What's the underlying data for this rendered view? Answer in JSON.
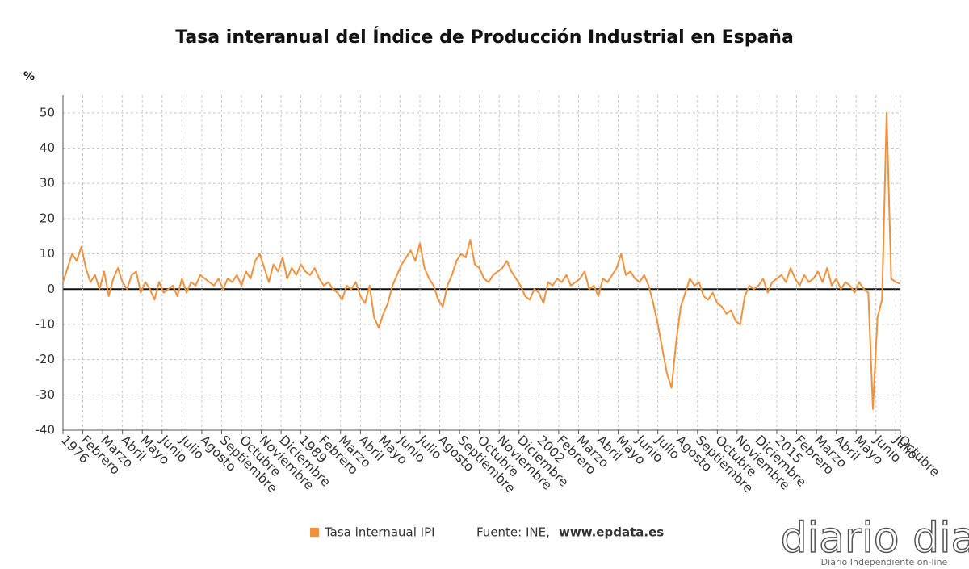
{
  "chart_data": {
    "type": "line",
    "title": "Tasa interanual del Índice de Producción Industrial en España",
    "y_label": "%",
    "x": [
      1976,
      1976.25,
      1976.5,
      1976.75,
      1977,
      1977.25,
      1977.5,
      1977.75,
      1978,
      1978.25,
      1978.5,
      1978.75,
      1979,
      1979.25,
      1979.5,
      1979.75,
      1980,
      1980.25,
      1980.5,
      1980.75,
      1981,
      1981.25,
      1981.5,
      1981.75,
      1982,
      1982.25,
      1982.5,
      1982.75,
      1983,
      1983.25,
      1983.5,
      1983.75,
      1984,
      1984.25,
      1984.5,
      1984.75,
      1985,
      1985.25,
      1985.5,
      1985.75,
      1986,
      1986.25,
      1986.5,
      1986.75,
      1987,
      1987.25,
      1987.5,
      1987.75,
      1988,
      1988.25,
      1988.5,
      1988.75,
      1989,
      1989.25,
      1989.5,
      1989.75,
      1990,
      1990.25,
      1990.5,
      1990.75,
      1991,
      1991.25,
      1991.5,
      1991.75,
      1992,
      1992.25,
      1992.5,
      1992.75,
      1993,
      1993.25,
      1993.5,
      1993.75,
      1994,
      1994.25,
      1994.5,
      1994.75,
      1995,
      1995.25,
      1995.5,
      1995.75,
      1996,
      1996.25,
      1996.5,
      1996.75,
      1997,
      1997.25,
      1997.5,
      1997.75,
      1998,
      1998.25,
      1998.5,
      1998.75,
      1999,
      1999.25,
      1999.5,
      1999.75,
      2000,
      2000.25,
      2000.5,
      2000.75,
      2001,
      2001.25,
      2001.5,
      2001.75,
      2002,
      2002.25,
      2002.5,
      2002.75,
      2003,
      2003.25,
      2003.5,
      2003.75,
      2004,
      2004.25,
      2004.5,
      2004.75,
      2005,
      2005.25,
      2005.5,
      2005.75,
      2006,
      2006.25,
      2006.5,
      2006.75,
      2007,
      2007.25,
      2007.5,
      2007.75,
      2008,
      2008.25,
      2008.5,
      2008.75,
      2009,
      2009.25,
      2009.5,
      2009.75,
      2010,
      2010.25,
      2010.5,
      2010.75,
      2011,
      2011.25,
      2011.5,
      2011.75,
      2012,
      2012.25,
      2012.5,
      2012.75,
      2013,
      2013.25,
      2013.5,
      2013.75,
      2014,
      2014.25,
      2014.5,
      2014.75,
      2015,
      2015.25,
      2015.5,
      2015.75,
      2016,
      2016.25,
      2016.5,
      2016.75,
      2017,
      2017.25,
      2017.5,
      2017.75,
      2018,
      2018.25,
      2018.5,
      2018.75,
      2019,
      2019.25,
      2019.5,
      2019.75,
      2020,
      2020.25,
      2020.5,
      2020.75,
      2021,
      2021.25,
      2021.5,
      2021.75
    ],
    "series": [
      {
        "name": "Tasa internaual IPI",
        "color": "#f0913e",
        "values": [
          2,
          6,
          10,
          8,
          12,
          6,
          2,
          4,
          0,
          5,
          -2,
          3,
          6,
          2,
          0,
          4,
          5,
          -1,
          2,
          0,
          -3,
          2,
          -1,
          0,
          1,
          -2,
          3,
          -1,
          2,
          1,
          4,
          3,
          2,
          1,
          3,
          0,
          3,
          2,
          4,
          1,
          5,
          3,
          8,
          10,
          6,
          2,
          7,
          5,
          9,
          3,
          6,
          4,
          7,
          5,
          4,
          6,
          3,
          1,
          2,
          0,
          -1,
          -3,
          1,
          0,
          2,
          -2,
          -4,
          1,
          -8,
          -11,
          -7,
          -4,
          1,
          4,
          7,
          9,
          11,
          8,
          13,
          6,
          3,
          1,
          -3,
          -5,
          1,
          4,
          8,
          10,
          9,
          14,
          7,
          6,
          3,
          2,
          4,
          5,
          6,
          8,
          5,
          3,
          1,
          -2,
          -3,
          0,
          -1,
          -4,
          2,
          1,
          3,
          2,
          4,
          1,
          2,
          3,
          5,
          0,
          1,
          -2,
          3,
          2,
          4,
          6,
          10,
          4,
          5,
          3,
          2,
          4,
          1,
          -4,
          -10,
          -17,
          -24,
          -28,
          -15,
          -5,
          -1,
          3,
          1,
          2,
          -2,
          -3,
          -1,
          -4,
          -5,
          -7,
          -6,
          -9,
          -10,
          -2,
          1,
          0,
          1,
          3,
          -1,
          2,
          3,
          4,
          2,
          6,
          3,
          1,
          4,
          2,
          3,
          5,
          2,
          6,
          1,
          3,
          0,
          2,
          1,
          -1,
          2,
          0,
          -1,
          -34,
          -8,
          -3,
          50,
          3,
          2,
          1.5
        ]
      }
    ],
    "xlim": [
      1976,
      2021.75
    ],
    "xticks": [
      {
        "value": 1976,
        "label": "1976"
      },
      {
        "value": 1977.0833,
        "label": "Febrero"
      },
      {
        "value": 1978.1667,
        "label": "Marzo"
      },
      {
        "value": 1979.25,
        "label": "Abril"
      },
      {
        "value": 1980.3333,
        "label": "Mayo"
      },
      {
        "value": 1981.4167,
        "label": "Junio"
      },
      {
        "value": 1982.5,
        "label": "Julio"
      },
      {
        "value": 1983.5833,
        "label": "Agosto"
      },
      {
        "value": 1984.6667,
        "label": "Septiembre"
      },
      {
        "value": 1985.75,
        "label": "Octubre"
      },
      {
        "value": 1986.8333,
        "label": "Noviembre"
      },
      {
        "value": 1987.9167,
        "label": "Diciembre"
      },
      {
        "value": 1989,
        "label": "1989"
      },
      {
        "value": 1990.0833,
        "label": "Febrero"
      },
      {
        "value": 1991.1667,
        "label": "Marzo"
      },
      {
        "value": 1992.25,
        "label": "Abril"
      },
      {
        "value": 1993.3333,
        "label": "Mayo"
      },
      {
        "value": 1994.4167,
        "label": "Junio"
      },
      {
        "value": 1995.5,
        "label": "Julio"
      },
      {
        "value": 1996.5833,
        "label": "Agosto"
      },
      {
        "value": 1997.6667,
        "label": "Septiembre"
      },
      {
        "value": 1998.75,
        "label": "Octubre"
      },
      {
        "value": 1999.8333,
        "label": "Noviembre"
      },
      {
        "value": 2000.9167,
        "label": "Diciembre"
      },
      {
        "value": 2002,
        "label": "2002"
      },
      {
        "value": 2003.0833,
        "label": "Febrero"
      },
      {
        "value": 2004.1667,
        "label": "Marzo"
      },
      {
        "value": 2005.25,
        "label": "Abril"
      },
      {
        "value": 2006.3333,
        "label": "Mayo"
      },
      {
        "value": 2007.4167,
        "label": "Junio"
      },
      {
        "value": 2008.5,
        "label": "Julio"
      },
      {
        "value": 2009.5833,
        "label": "Agosto"
      },
      {
        "value": 2010.6667,
        "label": "Septiembre"
      },
      {
        "value": 2011.75,
        "label": "Octubre"
      },
      {
        "value": 2012.8333,
        "label": "Noviembre"
      },
      {
        "value": 2013.9167,
        "label": "Diciembre"
      },
      {
        "value": 2015,
        "label": "2015"
      },
      {
        "value": 2016.0833,
        "label": "Febrero"
      },
      {
        "value": 2017.1667,
        "label": "Marzo"
      },
      {
        "value": 2018.25,
        "label": "Abril"
      },
      {
        "value": 2019.3333,
        "label": "Mayo"
      },
      {
        "value": 2020.4167,
        "label": "Junio"
      },
      {
        "value": 2021.5,
        "label": "Julio"
      },
      {
        "value": 2021.75,
        "label": "Octubre"
      }
    ],
    "ylim": [
      -40,
      55
    ],
    "yticks": [
      50,
      40,
      30,
      20,
      10,
      0,
      -10,
      -20,
      -30,
      -40
    ],
    "grid": true,
    "legend": "bottom",
    "source": {
      "label": "Fuente: INE,",
      "site": "www.epdata.es"
    }
  },
  "watermark": {
    "brand": "diario dia",
    "tagline": "Diario Independiente on-line"
  }
}
